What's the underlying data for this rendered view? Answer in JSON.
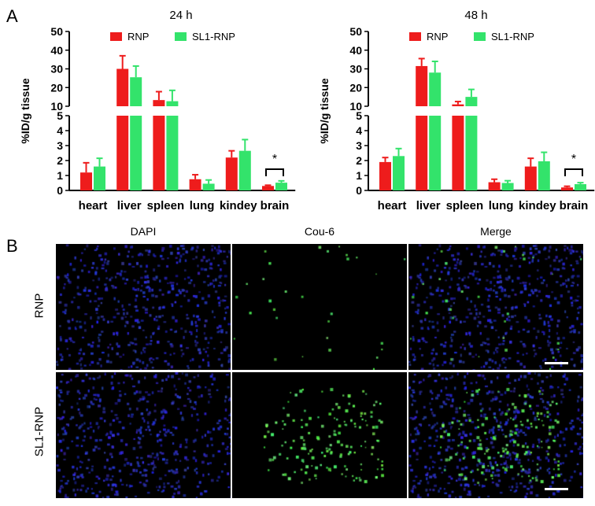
{
  "panel_labels": {
    "a": "A",
    "b": "B"
  },
  "colors": {
    "rnp": "#ee1c1c",
    "sl1_rnp": "#33e36b"
  },
  "chart_data": [
    {
      "type": "bar",
      "title": "24 h",
      "ylabel": "%ID/g tissue",
      "xlabel": "",
      "categories": [
        "heart",
        "liver",
        "spleen",
        "lung",
        "kindey",
        "brain"
      ],
      "series": [
        {
          "name": "RNP",
          "values": [
            1.2,
            30.0,
            13.3,
            0.75,
            2.2,
            0.3
          ],
          "errors": [
            0.65,
            7.0,
            4.5,
            0.3,
            0.45,
            0.05
          ]
        },
        {
          "name": "SL1-RNP",
          "values": [
            1.6,
            25.5,
            12.7,
            0.45,
            2.65,
            0.52
          ],
          "errors": [
            0.55,
            6.0,
            5.8,
            0.25,
            0.75,
            0.12
          ]
        }
      ],
      "y_axis": {
        "lower_range": [
          0,
          5
        ],
        "upper_range": [
          10,
          50
        ],
        "lower_ticks": [
          0,
          1,
          2,
          3,
          4,
          5
        ],
        "upper_ticks": [
          10,
          20,
          30,
          40,
          50
        ]
      },
      "significance": {
        "category": "brain",
        "marker": "*"
      },
      "legend_position": "top"
    },
    {
      "type": "bar",
      "title": "48 h",
      "ylabel": "%ID/g tissue",
      "xlabel": "",
      "categories": [
        "heart",
        "liver",
        "spleen",
        "lung",
        "kindey",
        "brain"
      ],
      "series": [
        {
          "name": "RNP",
          "values": [
            1.9,
            31.5,
            11.0,
            0.55,
            1.6,
            0.2
          ],
          "errors": [
            0.3,
            4.0,
            1.5,
            0.2,
            0.55,
            0.08
          ]
        },
        {
          "name": "SL1-RNP",
          "values": [
            2.3,
            28.0,
            15.0,
            0.5,
            1.95,
            0.42
          ],
          "errors": [
            0.5,
            6.0,
            4.0,
            0.15,
            0.6,
            0.1
          ]
        }
      ],
      "y_axis": {
        "lower_range": [
          0,
          5
        ],
        "upper_range": [
          10,
          50
        ],
        "lower_ticks": [
          0,
          1,
          2,
          3,
          4,
          5
        ],
        "upper_ticks": [
          10,
          20,
          30,
          40,
          50
        ]
      },
      "significance": {
        "category": "brain",
        "marker": "*"
      },
      "legend_position": "top"
    }
  ],
  "microscopy": {
    "columns": [
      "DAPI",
      "Cou-6",
      "Merge"
    ],
    "rows": [
      "RNP",
      "SL1-RNP"
    ],
    "green_signal_level": {
      "RNP": 0.15,
      "SL1-RNP": 0.8
    }
  }
}
